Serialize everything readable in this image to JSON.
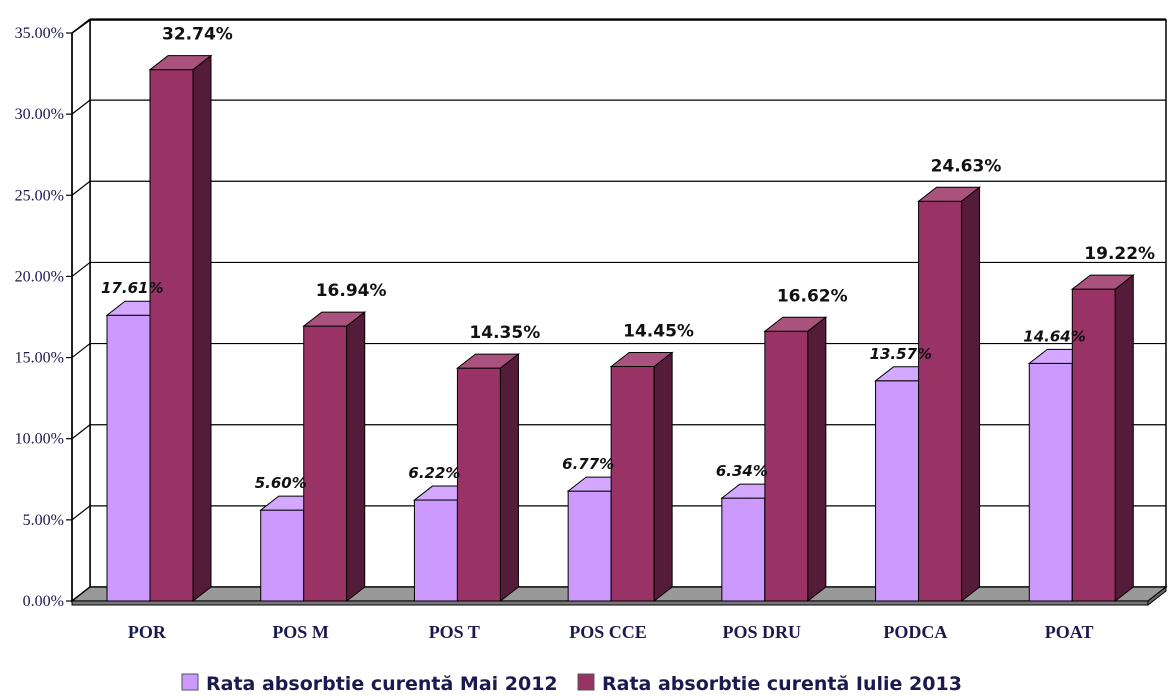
{
  "chart_data": {
    "type": "bar",
    "categories": [
      "POR",
      "POS M",
      "POS T",
      "POS CCE",
      "POS DRU",
      "PODCA",
      "POAT"
    ],
    "series": [
      {
        "name": "Rata absorbtie curentă Mai 2012",
        "values": [
          17.61,
          5.6,
          6.22,
          6.77,
          6.34,
          13.57,
          14.64
        ],
        "labels": [
          "17.61%",
          "5.60%",
          "6.22%",
          "6.77%",
          "6.34%",
          "13.57%",
          "14.64%"
        ],
        "color": "#cc99ff"
      },
      {
        "name": "Rata absorbtie curentă Iulie 2013",
        "values": [
          32.74,
          16.94,
          14.35,
          14.45,
          16.62,
          24.63,
          19.22
        ],
        "labels": [
          "32.74%",
          "16.94%",
          "14.35%",
          "14.45%",
          "16.62%",
          "24.63%",
          "19.22%"
        ],
        "color": "#993366"
      }
    ],
    "y_ticks": [
      "0.00%",
      "5.00%",
      "10.00%",
      "15.00%",
      "20.00%",
      "25.00%",
      "30.00%",
      "35.00%"
    ],
    "ylim": [
      0,
      35
    ],
    "grid": true,
    "style": "3d",
    "legend_position": "bottom"
  }
}
